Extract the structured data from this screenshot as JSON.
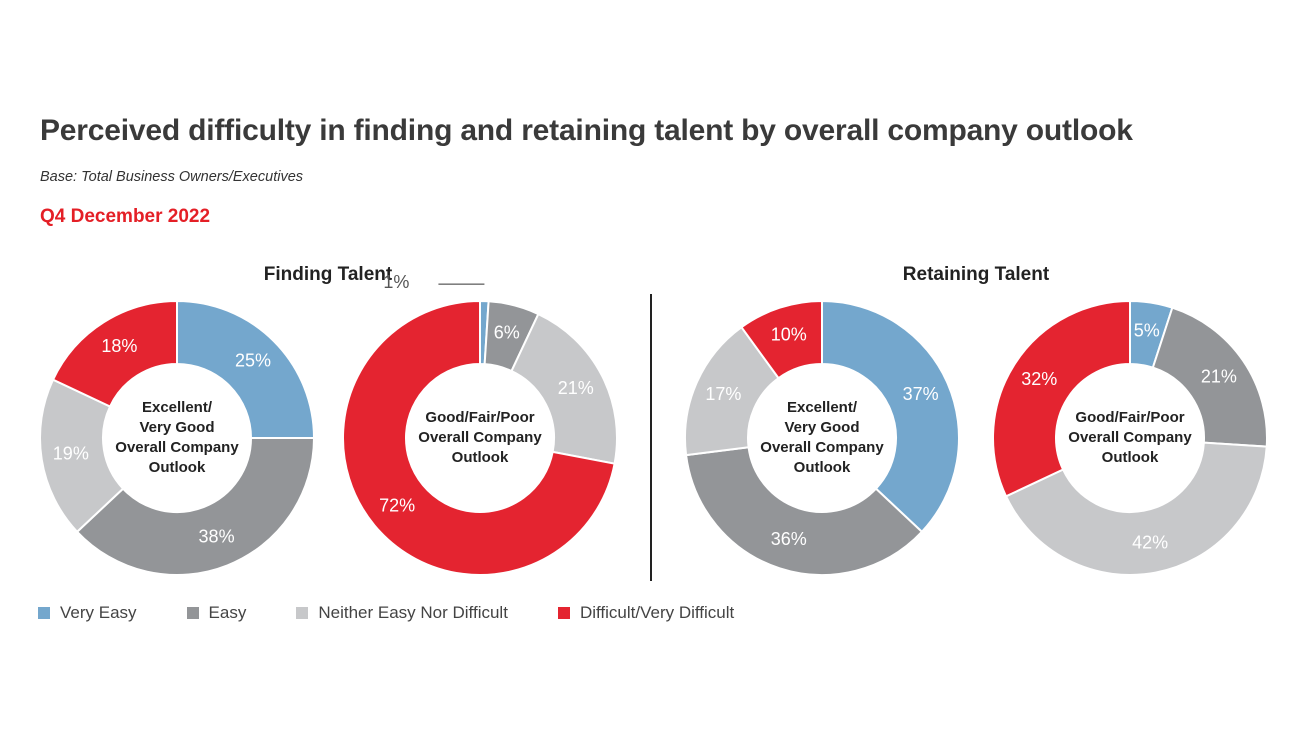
{
  "title": "Perceived difficulty in finding and retaining talent by overall company outlook",
  "subtitle": "Base: Total Business Owners/Executives",
  "period": "Q4 December 2022",
  "sections": {
    "finding": "Finding Talent",
    "retaining": "Retaining Talent"
  },
  "colors": {
    "very_easy": "#74a7cd",
    "easy": "#939598",
    "neither": "#c7c8ca",
    "difficult": "#e42430"
  },
  "legend": [
    {
      "label": "Very Easy",
      "color": "#74a7cd"
    },
    {
      "label": "Easy",
      "color": "#939598"
    },
    {
      "label": "Neither Easy Nor Difficult",
      "color": "#c7c8ca"
    },
    {
      "label": "Difficult/Very Difficult",
      "color": "#e42430"
    }
  ],
  "chart_data": [
    {
      "type": "pie",
      "section": "Finding Talent",
      "center_label": [
        "Excellent/",
        "Very Good",
        "Overall Company",
        "Outlook"
      ],
      "categories": [
        "Very Easy",
        "Easy",
        "Neither Easy Nor Difficult",
        "Difficult/Very Difficult"
      ],
      "values": [
        25,
        38,
        19,
        18
      ],
      "labels": [
        "25%",
        "38%",
        "19%",
        "18%"
      ]
    },
    {
      "type": "pie",
      "section": "Finding Talent",
      "center_label": [
        "Good/Fair/Poor",
        "Overall Company",
        "Outlook"
      ],
      "categories": [
        "Very Easy",
        "Easy",
        "Neither Easy Nor Difficult",
        "Difficult/Very Difficult"
      ],
      "values": [
        1,
        6,
        21,
        72
      ],
      "labels": [
        "1%",
        "6%",
        "21%",
        "72%"
      ]
    },
    {
      "type": "pie",
      "section": "Retaining Talent",
      "center_label": [
        "Excellent/",
        "Very Good",
        "Overall Company",
        "Outlook"
      ],
      "categories": [
        "Very Easy",
        "Easy",
        "Neither Easy Nor Difficult",
        "Difficult/Very Difficult"
      ],
      "values": [
        37,
        36,
        17,
        10
      ],
      "labels": [
        "37%",
        "36%",
        "17%",
        "10%"
      ]
    },
    {
      "type": "pie",
      "section": "Retaining Talent",
      "center_label": [
        "Good/Fair/Poor",
        "Overall Company",
        "Outlook"
      ],
      "categories": [
        "Very Easy",
        "Easy",
        "Neither Easy Nor Difficult",
        "Difficult/Very Difficult"
      ],
      "values": [
        5,
        21,
        42,
        32
      ],
      "labels": [
        "5%",
        "21%",
        "42%",
        "32%"
      ]
    }
  ]
}
